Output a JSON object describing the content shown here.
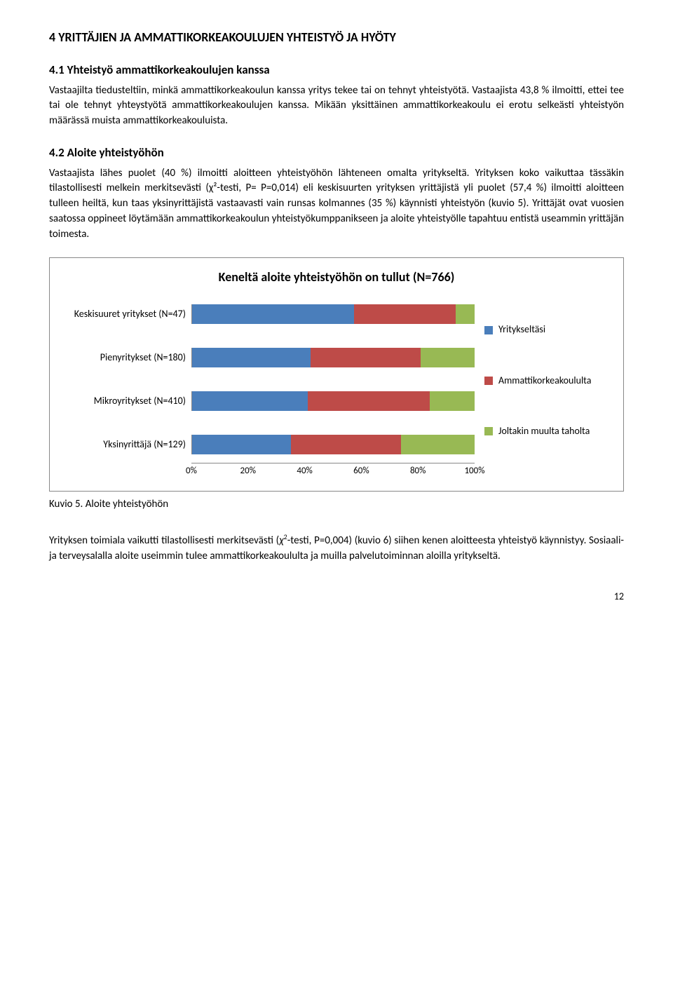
{
  "section": {
    "title": "4 YRITTÄJIEN JA AMMATTIKORKEAKOULUJEN YHTEISTYÖ JA HYÖTY",
    "sub1": {
      "title": "4.1 Yhteistyö ammattikorkeakoulujen kanssa",
      "p1": "Vastaajilta tiedusteltiin, minkä ammattikorkeakoulun kanssa yritys tekee tai on tehnyt yhteistyötä. Vastaajista 43,8 % ilmoitti, ettei tee tai ole tehnyt yhteystyötä ammattikorkeakoulujen kanssa. Mikään yksittäinen ammattikorkeakoulu ei erotu selkeästi yhteistyön määrässä muista ammattikorkeakouluista."
    },
    "sub2": {
      "title": "4.2 Aloite yhteistyöhön",
      "p1": "Vastaajista lähes puolet (40 %) ilmoitti aloitteen yhteistyöhön lähteneen omalta yritykseltä. Yrityksen koko vaikuttaa tässäkin tilastollisesti melkein merkitsevästi (χ²-testi, P= P=0,014) eli keskisuurten yrityksen yrittäjistä yli puolet (57,4 %) ilmoitti aloitteen tulleen heiltä, kun taas yksinyrittäjistä vastaavasti vain runsas kolmannes (35 %) käynnisti yhteistyön (kuvio 5). Yrittäjät ovat vuosien saatossa oppineet löytämään ammattikorkeakoulun yhteistyökumppanikseen ja aloite yhteistyölle tapahtuu entistä useammin yrittäjän toimesta."
    }
  },
  "chart": {
    "title": "Keneltä aloite yhteistyöhön on tullut (N=766)",
    "colors": {
      "series1": "#4a7ebb",
      "series2": "#be4b48",
      "series3": "#98b954",
      "border": "#888888",
      "bg": "#ffffff"
    },
    "legend": [
      {
        "label": "Yritykseltäsi",
        "color": "#4a7ebb"
      },
      {
        "label": "Ammattikorkeakoululta",
        "color": "#be4b48"
      },
      {
        "label": "Joltakin muulta taholta",
        "color": "#98b954"
      }
    ],
    "categories": [
      {
        "label": "Keskisuuret yritykset (N=47)",
        "values": [
          57.4,
          36,
          6.6
        ]
      },
      {
        "label": "Pienyritykset (N=180)",
        "values": [
          42,
          39,
          19
        ]
      },
      {
        "label": "Mikroyritykset (N=410)",
        "values": [
          41,
          43,
          16
        ]
      },
      {
        "label": "Yksinyrittäjä (N=129)",
        "values": [
          35,
          39,
          26
        ]
      }
    ],
    "xticks": [
      "0%",
      "20%",
      "40%",
      "60%",
      "80%",
      "100%"
    ]
  },
  "caption": "Kuvio 5. Aloite yhteistyöhön",
  "footer": {
    "p": "Yrityksen toimiala vaikutti tilastollisesti merkitsevästi ( -testi, P=0,004) (kuvio 6) siihen kenen aloitteesta yhteistyö käynnistyy. Sosiaali- ja terveysalalla aloite useimmin tulee ammattikorkeakoululta ja muilla palvelutoiminnan aloilla yritykseltä.",
    "chi_insert": "χ²"
  },
  "page_number": "12"
}
